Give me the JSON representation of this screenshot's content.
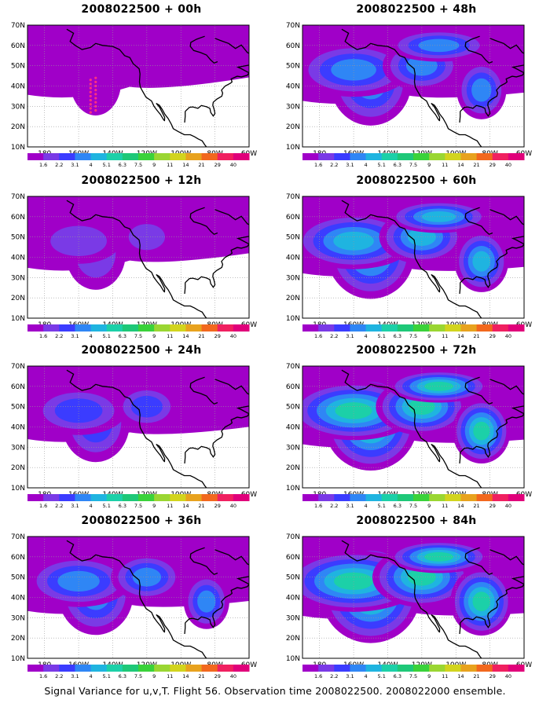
{
  "colorbar": {
    "labels": [
      "1.6",
      "2.2",
      "3.1",
      "4",
      "5.1",
      "6.3",
      "7.5",
      "9",
      "11",
      "14",
      "21",
      "29",
      "40"
    ],
    "colors": [
      "#a000c8",
      "#7a3ae6",
      "#3b3cff",
      "#2f86f5",
      "#1fb4e0",
      "#1cd0a8",
      "#1ec878",
      "#3ad23a",
      "#9ad632",
      "#d2d41e",
      "#e8a21e",
      "#f2681e",
      "#f02060",
      "#e0007a"
    ]
  },
  "axes": {
    "lat_labels": [
      "70N",
      "60N",
      "50N",
      "40N",
      "30N",
      "20N",
      "10N"
    ],
    "lon_labels": [
      "180",
      "160W",
      "140W",
      "120W",
      "100W",
      "80W",
      "60W"
    ]
  },
  "panels": [
    {
      "id": "00h",
      "title": "2008022500 + 00h",
      "level": 0.05
    },
    {
      "id": "48h",
      "title": "2008022500 + 48h",
      "level": 0.55
    },
    {
      "id": "12h",
      "title": "2008022500 + 12h",
      "level": 0.2
    },
    {
      "id": "60h",
      "title": "2008022500 + 60h",
      "level": 0.65
    },
    {
      "id": "24h",
      "title": "2008022500 + 24h",
      "level": 0.33
    },
    {
      "id": "72h",
      "title": "2008022500 + 72h",
      "level": 0.75
    },
    {
      "id": "36h",
      "title": "2008022500 + 36h",
      "level": 0.45
    },
    {
      "id": "84h",
      "title": "2008022500 + 84h",
      "level": 0.85
    }
  ],
  "caption": "Signal Variance for u,v,T. Flight 56. Observation time 2008022500. 2008022000 ensemble."
}
